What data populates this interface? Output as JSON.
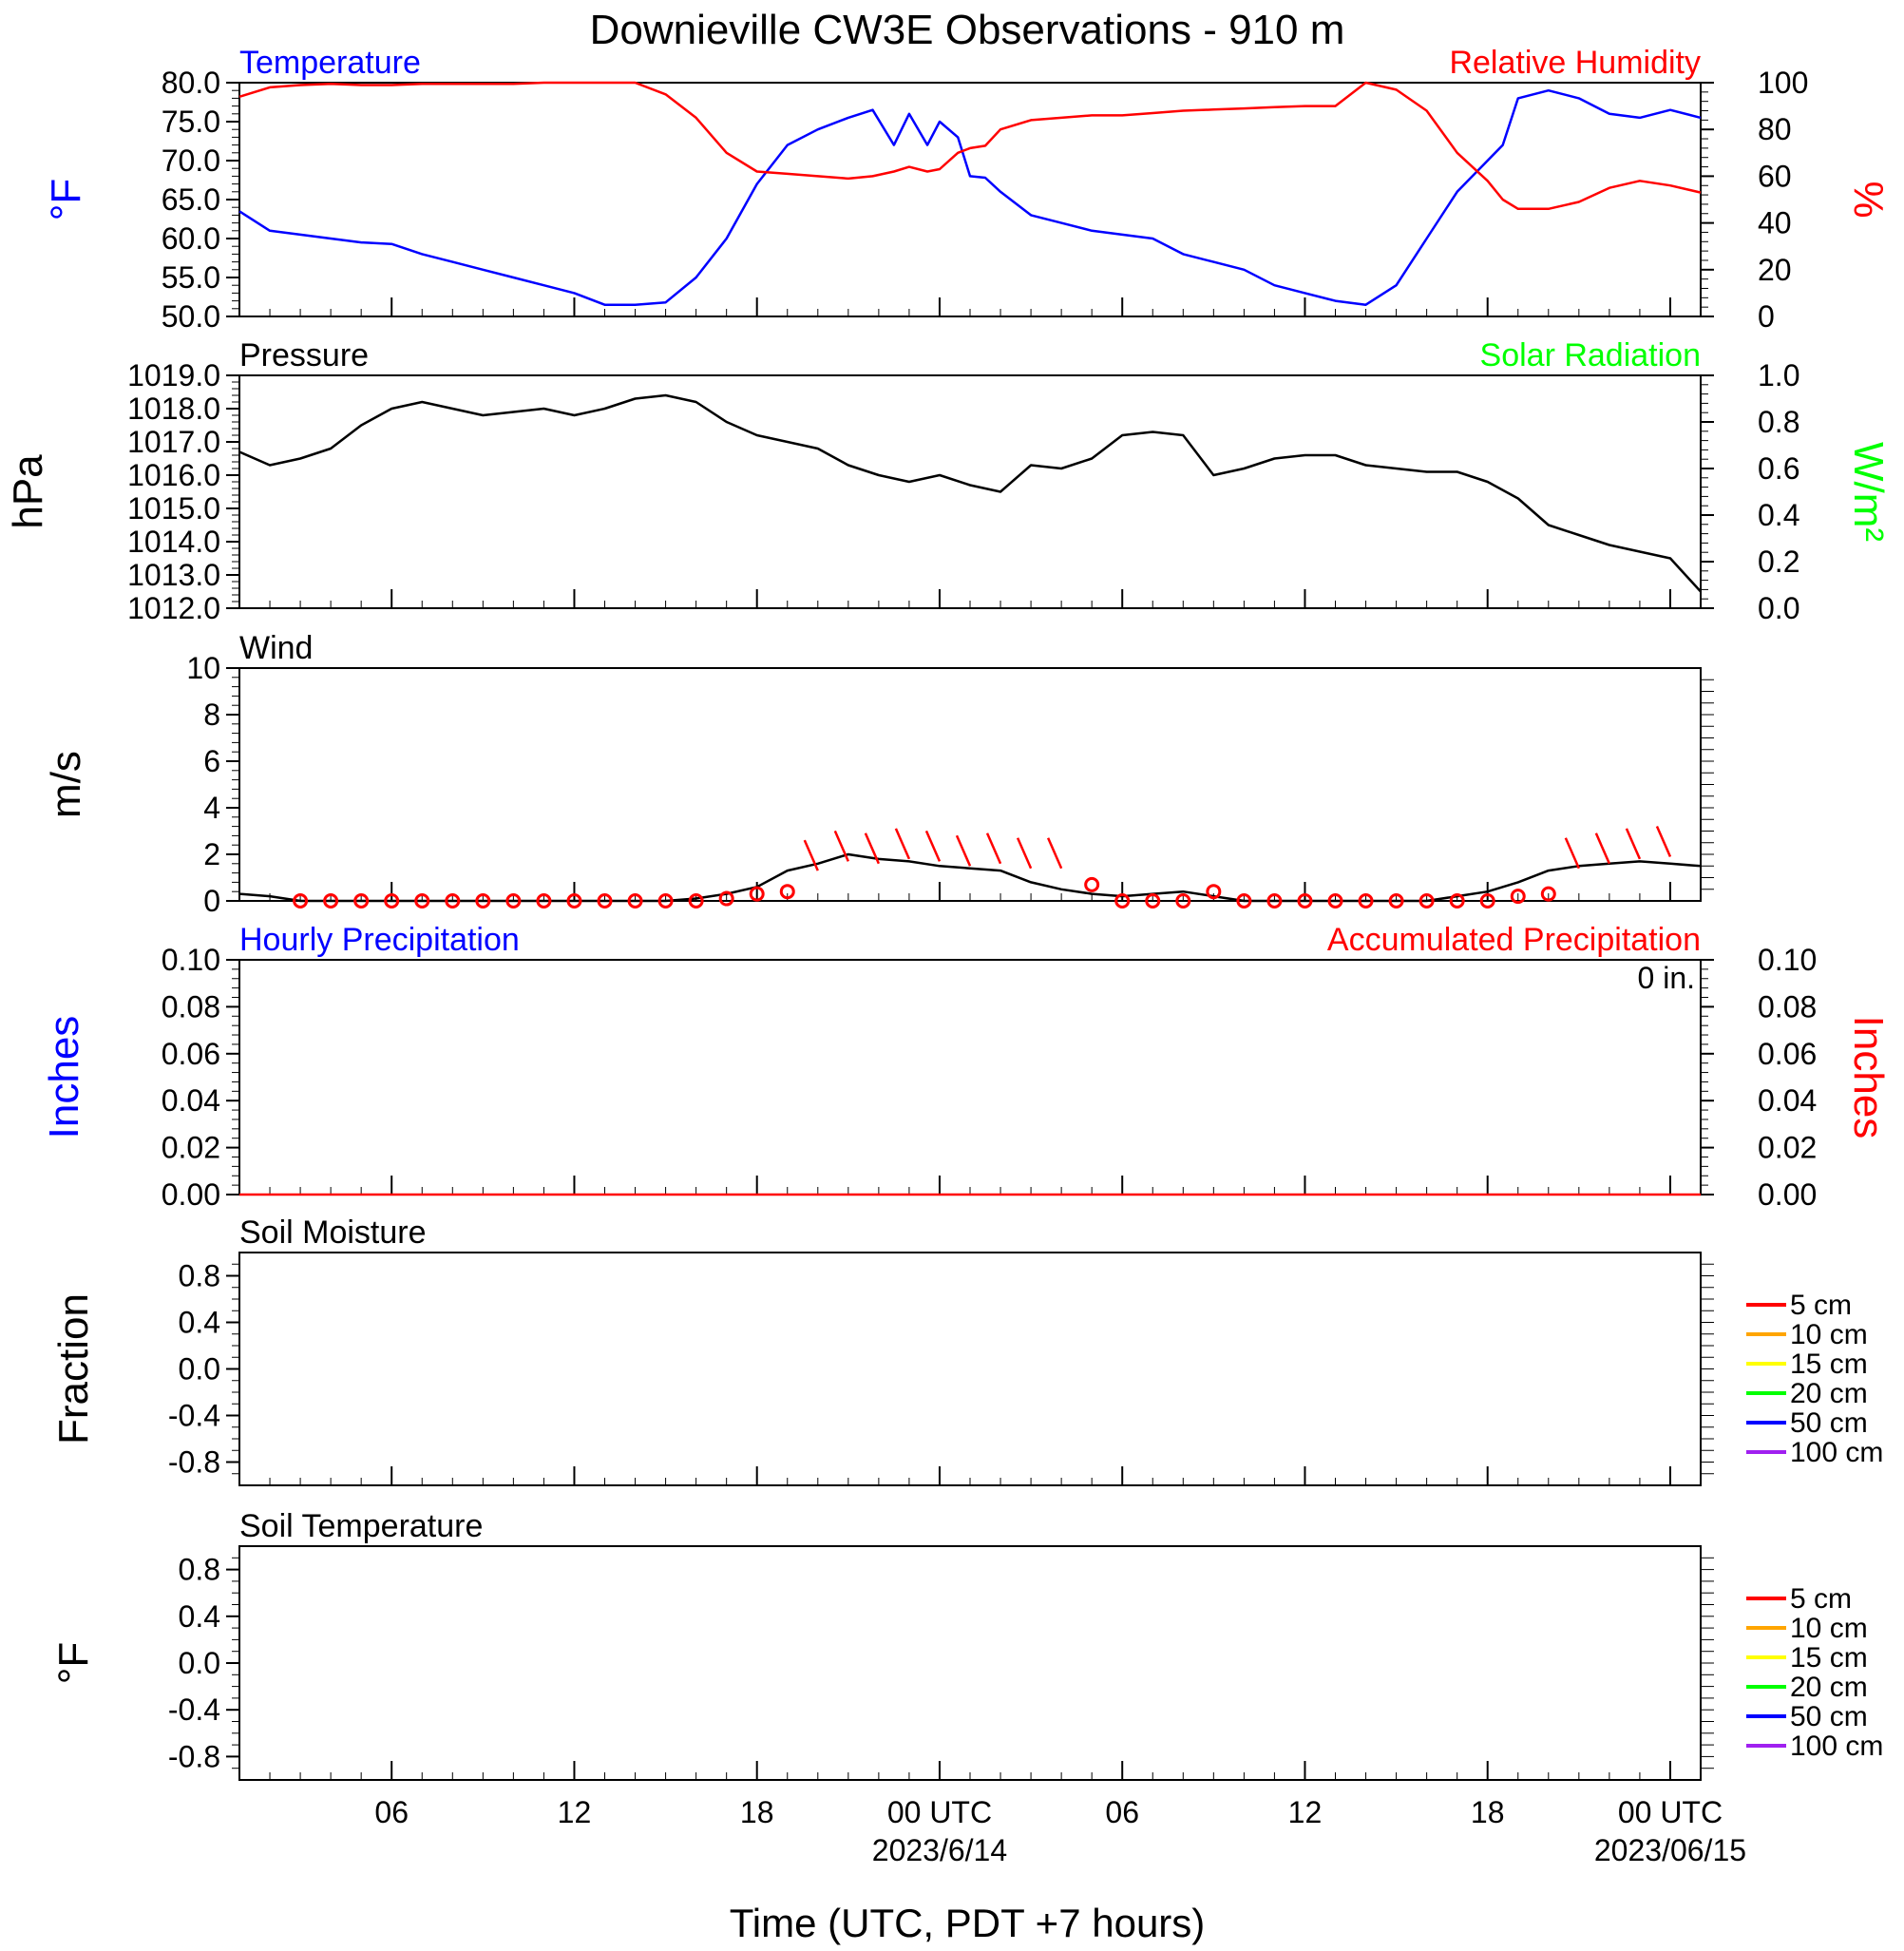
{
  "title": "Downieville CW3E Observations - 910 m",
  "xlabel": "Time (UTC, PDT +7 hours)",
  "x_axis": {
    "range_hours": [
      0,
      48
    ],
    "ticks": [
      {
        "hour": 5,
        "label": "06",
        "sub": ""
      },
      {
        "hour": 11,
        "label": "12",
        "sub": ""
      },
      {
        "hour": 17,
        "label": "18",
        "sub": ""
      },
      {
        "hour": 23,
        "label": "00 UTC",
        "sub": "2023/6/14"
      },
      {
        "hour": 29,
        "label": "06",
        "sub": ""
      },
      {
        "hour": 35,
        "label": "12",
        "sub": ""
      },
      {
        "hour": 41,
        "label": "18",
        "sub": ""
      },
      {
        "hour": 47,
        "label": "00 UTC",
        "sub": "2023/06/15"
      }
    ]
  },
  "colors": {
    "temperature": "#0000ff",
    "humidity": "#ff0000",
    "pressure": "#000000",
    "solar": "#00ff00",
    "wind": "#000000",
    "precip": "#ff0000"
  },
  "chart_data": [
    {
      "type": "line",
      "panel": "temperature-humidity",
      "left_label": "Temperature",
      "right_label": "Relative Humidity",
      "ylabel_left": "°F",
      "ylabel_right": "%",
      "ylim_left": [
        50,
        80
      ],
      "ylim_right": [
        0,
        100
      ],
      "yticks_left": [
        "50.0",
        "55.0",
        "60.0",
        "65.0",
        "70.0",
        "75.0",
        "80.0"
      ],
      "yticks_right": [
        "0",
        "20",
        "40",
        "60",
        "80",
        "100"
      ],
      "x": [
        0,
        1,
        2,
        3,
        4,
        5,
        6,
        7,
        8,
        9,
        10,
        11,
        12,
        13,
        14,
        15,
        16,
        17,
        18,
        19,
        20,
        20.8,
        21.5,
        22,
        22.6,
        23,
        23.6,
        24,
        24.5,
        25,
        26,
        27,
        28,
        29,
        30,
        31,
        32,
        33,
        34,
        35,
        36,
        37,
        38,
        39,
        40,
        41,
        41.5,
        42,
        43,
        44,
        45,
        46,
        47,
        48
      ],
      "series": [
        {
          "name": "Temperature",
          "axis": "left",
          "values": [
            63.5,
            61,
            60.5,
            60,
            59.5,
            59.3,
            58,
            57,
            56,
            55,
            54,
            53,
            51.5,
            51.5,
            51.8,
            55,
            60,
            67,
            72,
            74,
            75.5,
            76.5,
            72,
            76,
            72,
            75,
            73,
            68,
            67.8,
            66,
            63,
            62,
            61,
            60.5,
            60,
            58,
            57,
            56,
            54,
            53,
            52,
            51.5,
            54,
            60,
            66,
            70,
            72,
            78,
            79,
            78,
            76,
            75.5,
            76.5,
            75.5
          ]
        },
        {
          "name": "Relative Humidity",
          "axis": "right",
          "values": [
            94,
            98,
            99,
            99.5,
            99,
            99,
            99.5,
            99.5,
            99.5,
            99.5,
            100,
            100,
            100,
            100,
            95,
            85,
            70,
            62,
            61,
            60,
            59,
            60,
            62,
            64,
            62,
            63,
            70,
            72,
            73,
            80,
            84,
            85,
            86,
            86,
            87,
            88,
            88.5,
            89,
            89.5,
            90,
            90,
            100,
            97,
            88,
            70,
            58,
            50,
            46,
            46,
            49,
            55,
            58,
            56,
            53
          ]
        }
      ]
    },
    {
      "type": "line",
      "panel": "pressure",
      "left_label": "Pressure",
      "right_label": "Solar Radiation",
      "ylabel_left": "hPa",
      "ylabel_right": "W/m²",
      "ylim_left": [
        1012,
        1019
      ],
      "ylim_right": [
        0,
        1
      ],
      "yticks_left": [
        "1012.0",
        "1013.0",
        "1014.0",
        "1015.0",
        "1016.0",
        "1017.0",
        "1018.0",
        "1019.0"
      ],
      "yticks_right": [
        "0.0",
        "0.2",
        "0.4",
        "0.6",
        "0.8",
        "1.0"
      ],
      "x": [
        0,
        1,
        2,
        3,
        4,
        5,
        6,
        7,
        8,
        9,
        10,
        11,
        12,
        13,
        14,
        15,
        16,
        17,
        18,
        19,
        20,
        21,
        22,
        23,
        24,
        25,
        26,
        27,
        28,
        29,
        30,
        31,
        32,
        33,
        34,
        35,
        36,
        37,
        38,
        39,
        40,
        41,
        42,
        43,
        44,
        45,
        46,
        47,
        48
      ],
      "series": [
        {
          "name": "Pressure",
          "axis": "left",
          "values": [
            1016.7,
            1016.3,
            1016.5,
            1016.8,
            1017.5,
            1018,
            1018.2,
            1018,
            1017.8,
            1017.9,
            1018,
            1017.8,
            1018,
            1018.3,
            1018.4,
            1018.2,
            1017.6,
            1017.2,
            1017,
            1016.8,
            1016.3,
            1016,
            1015.8,
            1016,
            1015.7,
            1015.5,
            1016.3,
            1016.2,
            1016.5,
            1017.2,
            1017.3,
            1017.2,
            1016,
            1016.2,
            1016.5,
            1016.6,
            1016.6,
            1016.3,
            1016.2,
            1016.1,
            1016.1,
            1015.8,
            1015.3,
            1014.5,
            1014.2,
            1013.9,
            1013.7,
            1013.5,
            1012.5
          ]
        }
      ]
    },
    {
      "type": "line",
      "panel": "wind",
      "left_label": "Wind",
      "ylabel_left": "m/s",
      "ylim_left": [
        0,
        10
      ],
      "yticks_left": [
        "0",
        "2",
        "4",
        "6",
        "8",
        "10"
      ],
      "x": [
        0,
        1,
        2,
        3,
        4,
        5,
        6,
        7,
        8,
        9,
        10,
        11,
        12,
        13,
        14,
        15,
        16,
        17,
        18,
        19,
        20,
        21,
        22,
        23,
        24,
        25,
        26,
        27,
        28,
        29,
        30,
        31,
        32,
        33,
        34,
        35,
        36,
        37,
        38,
        39,
        40,
        41,
        42,
        43,
        44,
        45,
        46,
        47,
        48
      ],
      "series": [
        {
          "name": "Wind Speed",
          "axis": "left",
          "values": [
            0.3,
            0.2,
            0,
            0,
            0,
            0,
            0,
            0,
            0,
            0,
            0,
            0,
            0,
            0,
            0,
            0.1,
            0.3,
            0.6,
            1.3,
            1.6,
            2,
            1.8,
            1.7,
            1.5,
            1.4,
            1.3,
            0.8,
            0.5,
            0.3,
            0.2,
            0.3,
            0.4,
            0.2,
            0,
            0,
            0,
            0,
            0,
            0,
            0,
            0.2,
            0.4,
            0.8,
            1.3,
            1.5,
            1.6,
            1.7,
            1.6,
            1.5
          ]
        }
      ],
      "barb_speeds": [
        0,
        0,
        0,
        0,
        0,
        0,
        0,
        0,
        0,
        0,
        0,
        0,
        0,
        0,
        0.1,
        0.3,
        0.4,
        1.3,
        1.7,
        1.6,
        1.8,
        1.7,
        1.5,
        1.6,
        1.4,
        1.4,
        0.7,
        0,
        0,
        0,
        0.4,
        0,
        0,
        0,
        0,
        0,
        0,
        0,
        0,
        0,
        0.2,
        0.3,
        1.4,
        1.6,
        1.8,
        1.9,
        1.7,
        1.5
      ]
    },
    {
      "type": "line",
      "panel": "precipitation",
      "left_label": "Hourly Precipitation",
      "right_label": "Accumulated Precipitation",
      "total_label": "0 in.",
      "ylabel_left": "Inches",
      "ylabel_right": "Inches",
      "ylim_left": [
        0,
        0.1
      ],
      "ylim_right": [
        0,
        0.1
      ],
      "yticks_left": [
        "0.00",
        "0.02",
        "0.04",
        "0.06",
        "0.08",
        "0.10"
      ],
      "yticks_right": [
        "0.00",
        "0.02",
        "0.04",
        "0.06",
        "0.08",
        "0.10"
      ],
      "x": [
        0,
        48
      ],
      "series": [
        {
          "name": "Accumulated Precipitation",
          "axis": "right",
          "values": [
            0,
            0
          ]
        }
      ]
    },
    {
      "type": "line",
      "panel": "soil-moisture",
      "left_label": "Soil Moisture",
      "ylabel_left": "Fraction",
      "ylim_left": [
        -1,
        1
      ],
      "yticks_left": [
        "-0.8",
        "-0.4",
        "0.0",
        "0.4",
        "0.8"
      ],
      "series": []
    },
    {
      "type": "line",
      "panel": "soil-temperature",
      "left_label": "Soil Temperature",
      "ylabel_left": "°F",
      "ylim_left": [
        -1,
        1
      ],
      "yticks_left": [
        "-0.8",
        "-0.4",
        "0.0",
        "0.4",
        "0.8"
      ],
      "series": []
    }
  ],
  "soil_legend": [
    {
      "label": "5 cm",
      "color": "#ff0000"
    },
    {
      "label": "10 cm",
      "color": "#ffa500"
    },
    {
      "label": "15 cm",
      "color": "#ffff00"
    },
    {
      "label": "20 cm",
      "color": "#00ff00"
    },
    {
      "label": "50 cm",
      "color": "#0000ff"
    },
    {
      "label": "100 cm",
      "color": "#a020f0"
    }
  ]
}
